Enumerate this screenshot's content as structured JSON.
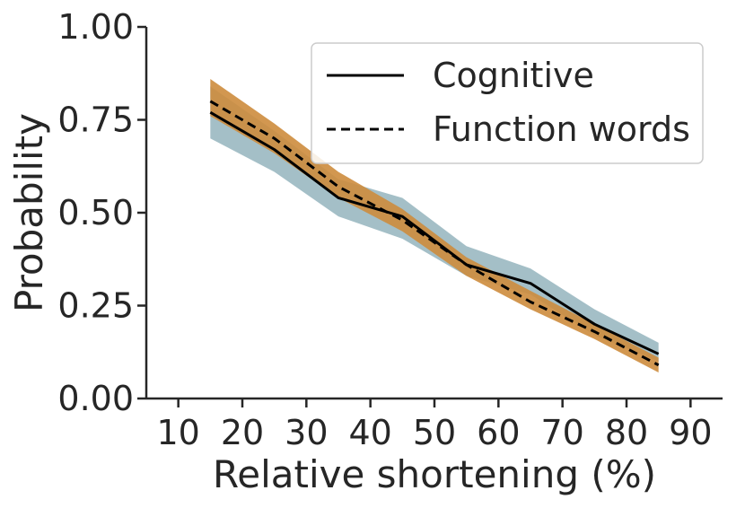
{
  "chart_data": {
    "type": "line",
    "title": "",
    "xlabel": "Relative shortening (%)",
    "ylabel": "Probability",
    "xlim": [
      5,
      95
    ],
    "ylim": [
      0,
      1
    ],
    "xticks": [
      "10",
      "20",
      "30",
      "40",
      "50",
      "60",
      "70",
      "80",
      "90"
    ],
    "yticks": [
      "0.00",
      "0.25",
      "0.50",
      "0.75",
      "1.00"
    ],
    "legend_position": "top-right",
    "series": [
      {
        "name": "Cognitive",
        "style": "solid",
        "line_color": "#000000",
        "band_color": "#9fbcc4",
        "x": [
          15,
          25,
          35,
          45,
          55,
          65,
          75,
          85
        ],
        "values": [
          0.77,
          0.67,
          0.54,
          0.49,
          0.36,
          0.31,
          0.2,
          0.12
        ],
        "lower": [
          0.7,
          0.61,
          0.49,
          0.43,
          0.33,
          0.28,
          0.17,
          0.1
        ],
        "upper": [
          0.84,
          0.72,
          0.59,
          0.54,
          0.41,
          0.35,
          0.24,
          0.15
        ]
      },
      {
        "name": "Function words",
        "style": "dashed",
        "line_color": "#000000",
        "band_color": "#cd8c3d",
        "x": [
          15,
          25,
          35,
          45,
          55,
          65,
          75,
          85
        ],
        "values": [
          0.8,
          0.7,
          0.57,
          0.48,
          0.36,
          0.26,
          0.18,
          0.09
        ],
        "lower": [
          0.76,
          0.66,
          0.54,
          0.45,
          0.33,
          0.24,
          0.16,
          0.07
        ],
        "upper": [
          0.86,
          0.74,
          0.61,
          0.51,
          0.38,
          0.29,
          0.2,
          0.11
        ]
      }
    ]
  }
}
